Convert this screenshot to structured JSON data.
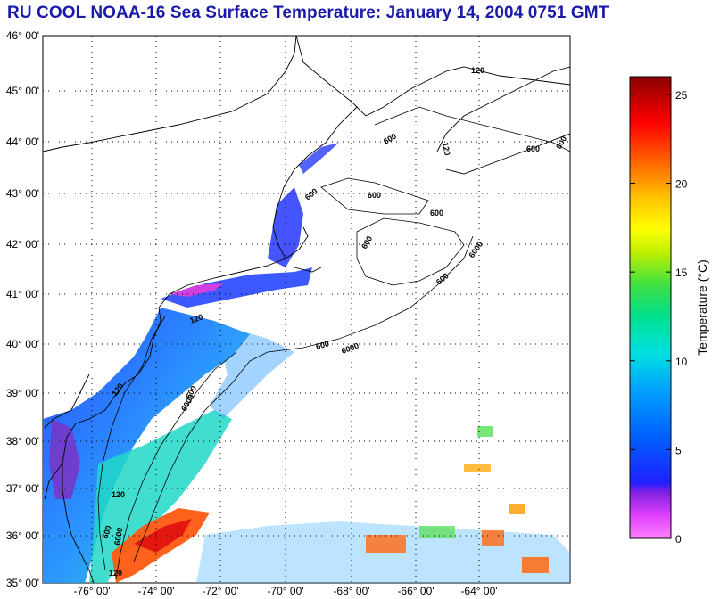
{
  "title": "RU COOL  NOAA-16  Sea Surface Temperature:  January 14, 2004 0751 GMT",
  "map": {
    "lat_labels": [
      "46° 00'",
      "45° 00'",
      "44° 00'",
      "43° 00'",
      "42° 00'",
      "41° 00'",
      "40° 00'",
      "39° 00'",
      "38° 00'",
      "37° 00'",
      "36° 00'",
      "35° 00'"
    ],
    "lon_labels": [
      "-76° 00'",
      "-74° 00'",
      "-72° 00'",
      "-70° 00'",
      "-68° 00'",
      "-66° 00'",
      "-64° 00'"
    ],
    "contours": {
      "c120": "120",
      "c600": "600",
      "c6000": "6000"
    }
  },
  "colorbar": {
    "title": "Temperature (°C)",
    "ticks": [
      "0",
      "5",
      "10",
      "15",
      "20",
      "25"
    ],
    "min": 0,
    "max": 26
  },
  "colors": {
    "title": "#1a1aa8",
    "land_line": "#000000"
  }
}
